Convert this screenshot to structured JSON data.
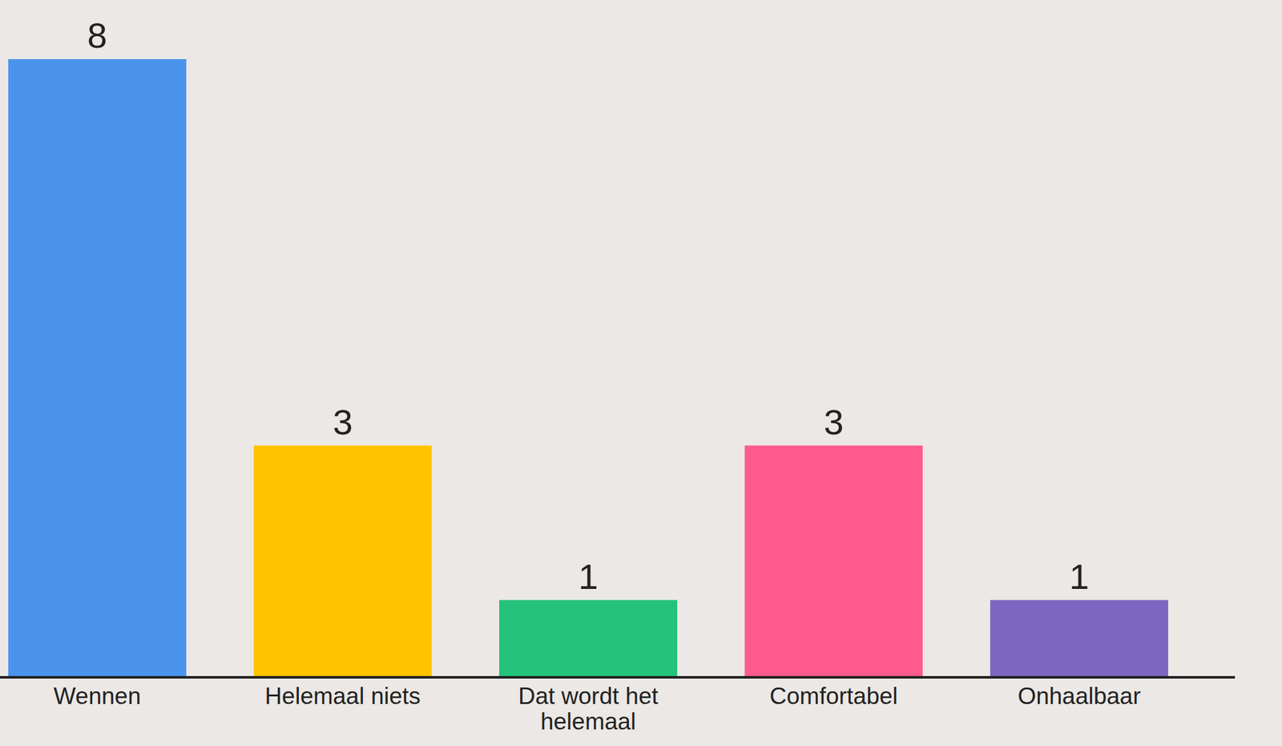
{
  "chart_data": {
    "type": "bar",
    "categories": [
      "Wennen",
      "Helemaal niets",
      "Dat wordt het helemaal",
      "Comfortabel",
      "Onhaalbaar"
    ],
    "values": [
      8,
      3,
      1,
      3,
      1
    ],
    "colors": [
      "#4a93ec",
      "#ffc300",
      "#24c27a",
      "#ff5a8e",
      "#7d66c2"
    ],
    "ylim": [
      0,
      8
    ],
    "data_labels": true,
    "tick_labels": "x"
  }
}
